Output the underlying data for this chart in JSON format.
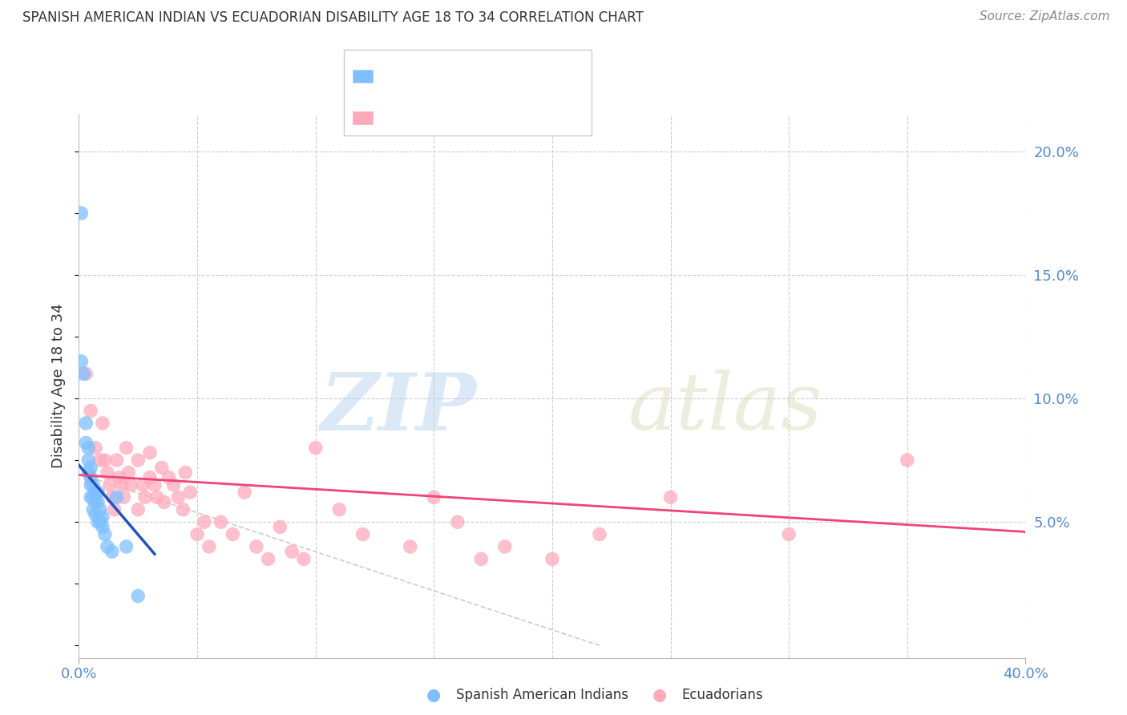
{
  "title": "SPANISH AMERICAN INDIAN VS ECUADORIAN DISABILITY AGE 18 TO 34 CORRELATION CHART",
  "source": "Source: ZipAtlas.com",
  "ylabel": "Disability Age 18 to 34",
  "x_min": 0.0,
  "x_max": 0.4,
  "y_min": -0.005,
  "y_max": 0.215,
  "grid_color": "#cccccc",
  "background_color": "#ffffff",
  "blue_color": "#7fbfff",
  "pink_color": "#ffaabb",
  "blue_line_color": "#2255bb",
  "pink_line_color": "#ee4477",
  "blue_label": "Spanish American Indians",
  "pink_label": "Ecuadorians",
  "blue_scatter_x": [
    0.001,
    0.001,
    0.002,
    0.003,
    0.003,
    0.004,
    0.004,
    0.004,
    0.005,
    0.005,
    0.005,
    0.005,
    0.006,
    0.006,
    0.006,
    0.007,
    0.007,
    0.007,
    0.008,
    0.008,
    0.008,
    0.009,
    0.009,
    0.01,
    0.01,
    0.011,
    0.012,
    0.014,
    0.016,
    0.02,
    0.025
  ],
  "blue_scatter_y": [
    0.175,
    0.115,
    0.11,
    0.09,
    0.082,
    0.08,
    0.075,
    0.07,
    0.072,
    0.068,
    0.065,
    0.06,
    0.065,
    0.06,
    0.055,
    0.062,
    0.058,
    0.053,
    0.062,
    0.058,
    0.05,
    0.055,
    0.05,
    0.052,
    0.048,
    0.045,
    0.04,
    0.038,
    0.06,
    0.04,
    0.02
  ],
  "pink_scatter_x": [
    0.003,
    0.005,
    0.007,
    0.009,
    0.01,
    0.011,
    0.012,
    0.013,
    0.014,
    0.015,
    0.016,
    0.017,
    0.018,
    0.019,
    0.02,
    0.021,
    0.022,
    0.025,
    0.025,
    0.027,
    0.028,
    0.03,
    0.03,
    0.032,
    0.033,
    0.035,
    0.036,
    0.038,
    0.04,
    0.042,
    0.044,
    0.045,
    0.047,
    0.05,
    0.053,
    0.055,
    0.06,
    0.065,
    0.07,
    0.075,
    0.08,
    0.085,
    0.09,
    0.095,
    0.1,
    0.11,
    0.12,
    0.14,
    0.15,
    0.16,
    0.17,
    0.18,
    0.2,
    0.22,
    0.25,
    0.3,
    0.35
  ],
  "pink_scatter_y": [
    0.11,
    0.095,
    0.08,
    0.075,
    0.09,
    0.075,
    0.07,
    0.065,
    0.06,
    0.055,
    0.075,
    0.068,
    0.065,
    0.06,
    0.08,
    0.07,
    0.065,
    0.075,
    0.055,
    0.065,
    0.06,
    0.078,
    0.068,
    0.065,
    0.06,
    0.072,
    0.058,
    0.068,
    0.065,
    0.06,
    0.055,
    0.07,
    0.062,
    0.045,
    0.05,
    0.04,
    0.05,
    0.045,
    0.062,
    0.04,
    0.035,
    0.048,
    0.038,
    0.035,
    0.08,
    0.055,
    0.045,
    0.04,
    0.06,
    0.05,
    0.035,
    0.04,
    0.035,
    0.045,
    0.06,
    0.045,
    0.075
  ],
  "blue_line_x0": 0.0,
  "blue_line_x1": 0.032,
  "blue_line_y0": 0.073,
  "blue_line_y1": 0.037,
  "pink_line_x0": 0.0,
  "pink_line_x1": 0.4,
  "pink_line_y0": 0.069,
  "pink_line_y1": 0.046,
  "ref_line_x0": 0.005,
  "ref_line_x1": 0.22,
  "ref_line_y0": 0.068,
  "ref_line_y1": 0.0
}
